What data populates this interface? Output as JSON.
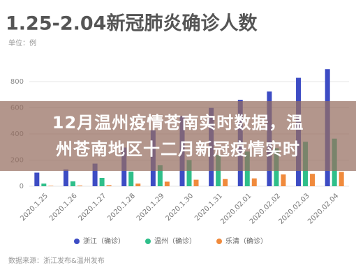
{
  "chart_data": {
    "type": "bar",
    "title": "1.25-2.04新冠肺炎确诊人数",
    "subtitle": "单位：例",
    "categories": [
      "2020.1.25",
      "2020.1.26",
      "2020.1.27",
      "2020.1.28",
      "2020.1.29",
      "2020.1.30",
      "2020.1.31",
      "2020.02.01",
      "2020.02.02",
      "2020.02.03",
      "2020.02.04"
    ],
    "series": [
      {
        "name": "浙江（确诊）",
        "color": "#3d4cc4",
        "values": [
          104,
          128,
          173,
          296,
          428,
          537,
          599,
          661,
          724,
          829,
          895
        ]
      },
      {
        "name": "温州（确诊）",
        "color": "#2fbf8a",
        "values": [
          20,
          37,
          64,
          112,
          160,
          200,
          240,
          265,
          291,
          340,
          364
        ]
      },
      {
        "name": "乐清（确诊）",
        "color": "#f08a3c",
        "values": [
          3,
          5,
          8,
          20,
          35,
          50,
          55,
          60,
          90,
          95,
          110
        ]
      }
    ],
    "ylim": [
      0,
      900
    ],
    "yticks": [
      0,
      200,
      400,
      600,
      800
    ],
    "grid": true,
    "source": "数据来源：浙江发布&温州发布"
  },
  "overlay": {
    "lines": [
      "12月温州疫情苍南实时数据，温",
      "州苍南地区十二月新冠疫情实时"
    ]
  }
}
